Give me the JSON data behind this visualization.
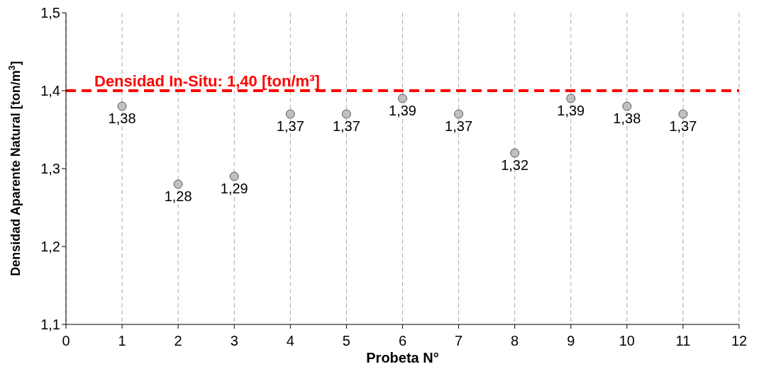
{
  "chart_data": {
    "type": "scatter",
    "xlabel": "Probeta N°",
    "ylabel": "Densidad Aparente Natural [ton/m$^{3}$]",
    "x": [
      1,
      2,
      3,
      4,
      5,
      6,
      7,
      8,
      9,
      10,
      11
    ],
    "values": [
      1.38,
      1.28,
      1.29,
      1.37,
      1.37,
      1.39,
      1.37,
      1.32,
      1.39,
      1.38,
      1.37
    ],
    "value_labels": [
      "1,38",
      "1,28",
      "1,29",
      "1,37",
      "1,37",
      "1,39",
      "1,37",
      "1,32",
      "1,39",
      "1,38",
      "1,37"
    ],
    "color": "#c0c0c0",
    "marker": "circle",
    "xlim": [
      0,
      12
    ],
    "xticks": [
      0,
      1,
      2,
      3,
      4,
      5,
      6,
      7,
      8,
      9,
      10,
      11,
      12
    ],
    "ylim": [
      1.1,
      1.5
    ],
    "yticks": [
      {
        "value": 1.1,
        "label": "1,1"
      },
      {
        "value": 1.2,
        "label": "1,2"
      },
      {
        "value": 1.3,
        "label": "1,3"
      },
      {
        "value": 1.4,
        "label": "1,4"
      },
      {
        "value": 1.5,
        "label": "1,5"
      }
    ],
    "grid": "x",
    "ref_lines": [
      {
        "axis": "y",
        "value": 1.4,
        "label": "Densidad In-Situ: 1,40 [ton/m³]",
        "color": "#ff0000",
        "line_style": "dashed"
      }
    ]
  }
}
